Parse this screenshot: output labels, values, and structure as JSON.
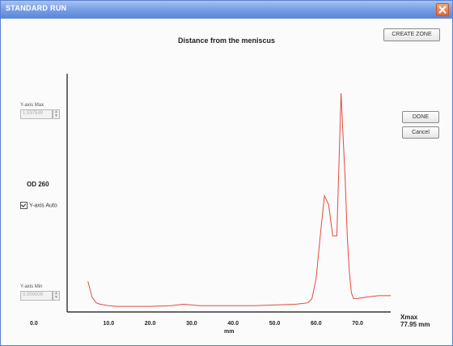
{
  "window": {
    "title": "STANDARD RUN",
    "close_icon": "close-icon"
  },
  "toolbar": {
    "create_zone_label": "CREATE ZONE",
    "done_label": "DONE",
    "cancel_label": "Cancel"
  },
  "controls": {
    "ymax_label": "Y-axis Max",
    "ymax_value": "1.537530",
    "ymin_label": "Y-axis Min",
    "ymin_value": "0.000000",
    "y_axis_auto_label": "Y-axis Auto",
    "y_axis_auto_checked": true
  },
  "colors": {
    "trace": "#e34a3a",
    "titlebar": "#7aa0e6",
    "axis": "#111111"
  },
  "chart_data": {
    "type": "line",
    "title": "Distance from the meniscus",
    "xlabel": "mm",
    "ylabel": "OD 260",
    "x_ticks": [
      "0.0",
      "10.0",
      "20.0",
      "30.0",
      "40.0",
      "50.0",
      "60.0",
      "70.0"
    ],
    "xmax_label": "Xmax",
    "xmax_value": "77.95 mm",
    "xlim": [
      0,
      77.95
    ],
    "ylim": [
      0,
      1.53753
    ],
    "series": [
      {
        "x": [
          5,
          6,
          7,
          8,
          10,
          12,
          15,
          20,
          25,
          28,
          30,
          32,
          35,
          40,
          45,
          50,
          55,
          58,
          59,
          60,
          61,
          62,
          63,
          64,
          65,
          65.5,
          66,
          66.5,
          67,
          67.5,
          68,
          68.5,
          69,
          70,
          72,
          75,
          78
        ],
        "y": [
          0.18,
          0.07,
          0.03,
          0.02,
          0.01,
          0.005,
          0.005,
          0.005,
          0.01,
          0.02,
          0.015,
          0.01,
          0.01,
          0.01,
          0.01,
          0.015,
          0.02,
          0.03,
          0.06,
          0.2,
          0.5,
          0.78,
          0.72,
          0.5,
          0.5,
          1.0,
          1.5,
          1.2,
          0.9,
          0.5,
          0.25,
          0.1,
          0.06,
          0.06,
          0.07,
          0.08,
          0.08
        ]
      }
    ]
  }
}
